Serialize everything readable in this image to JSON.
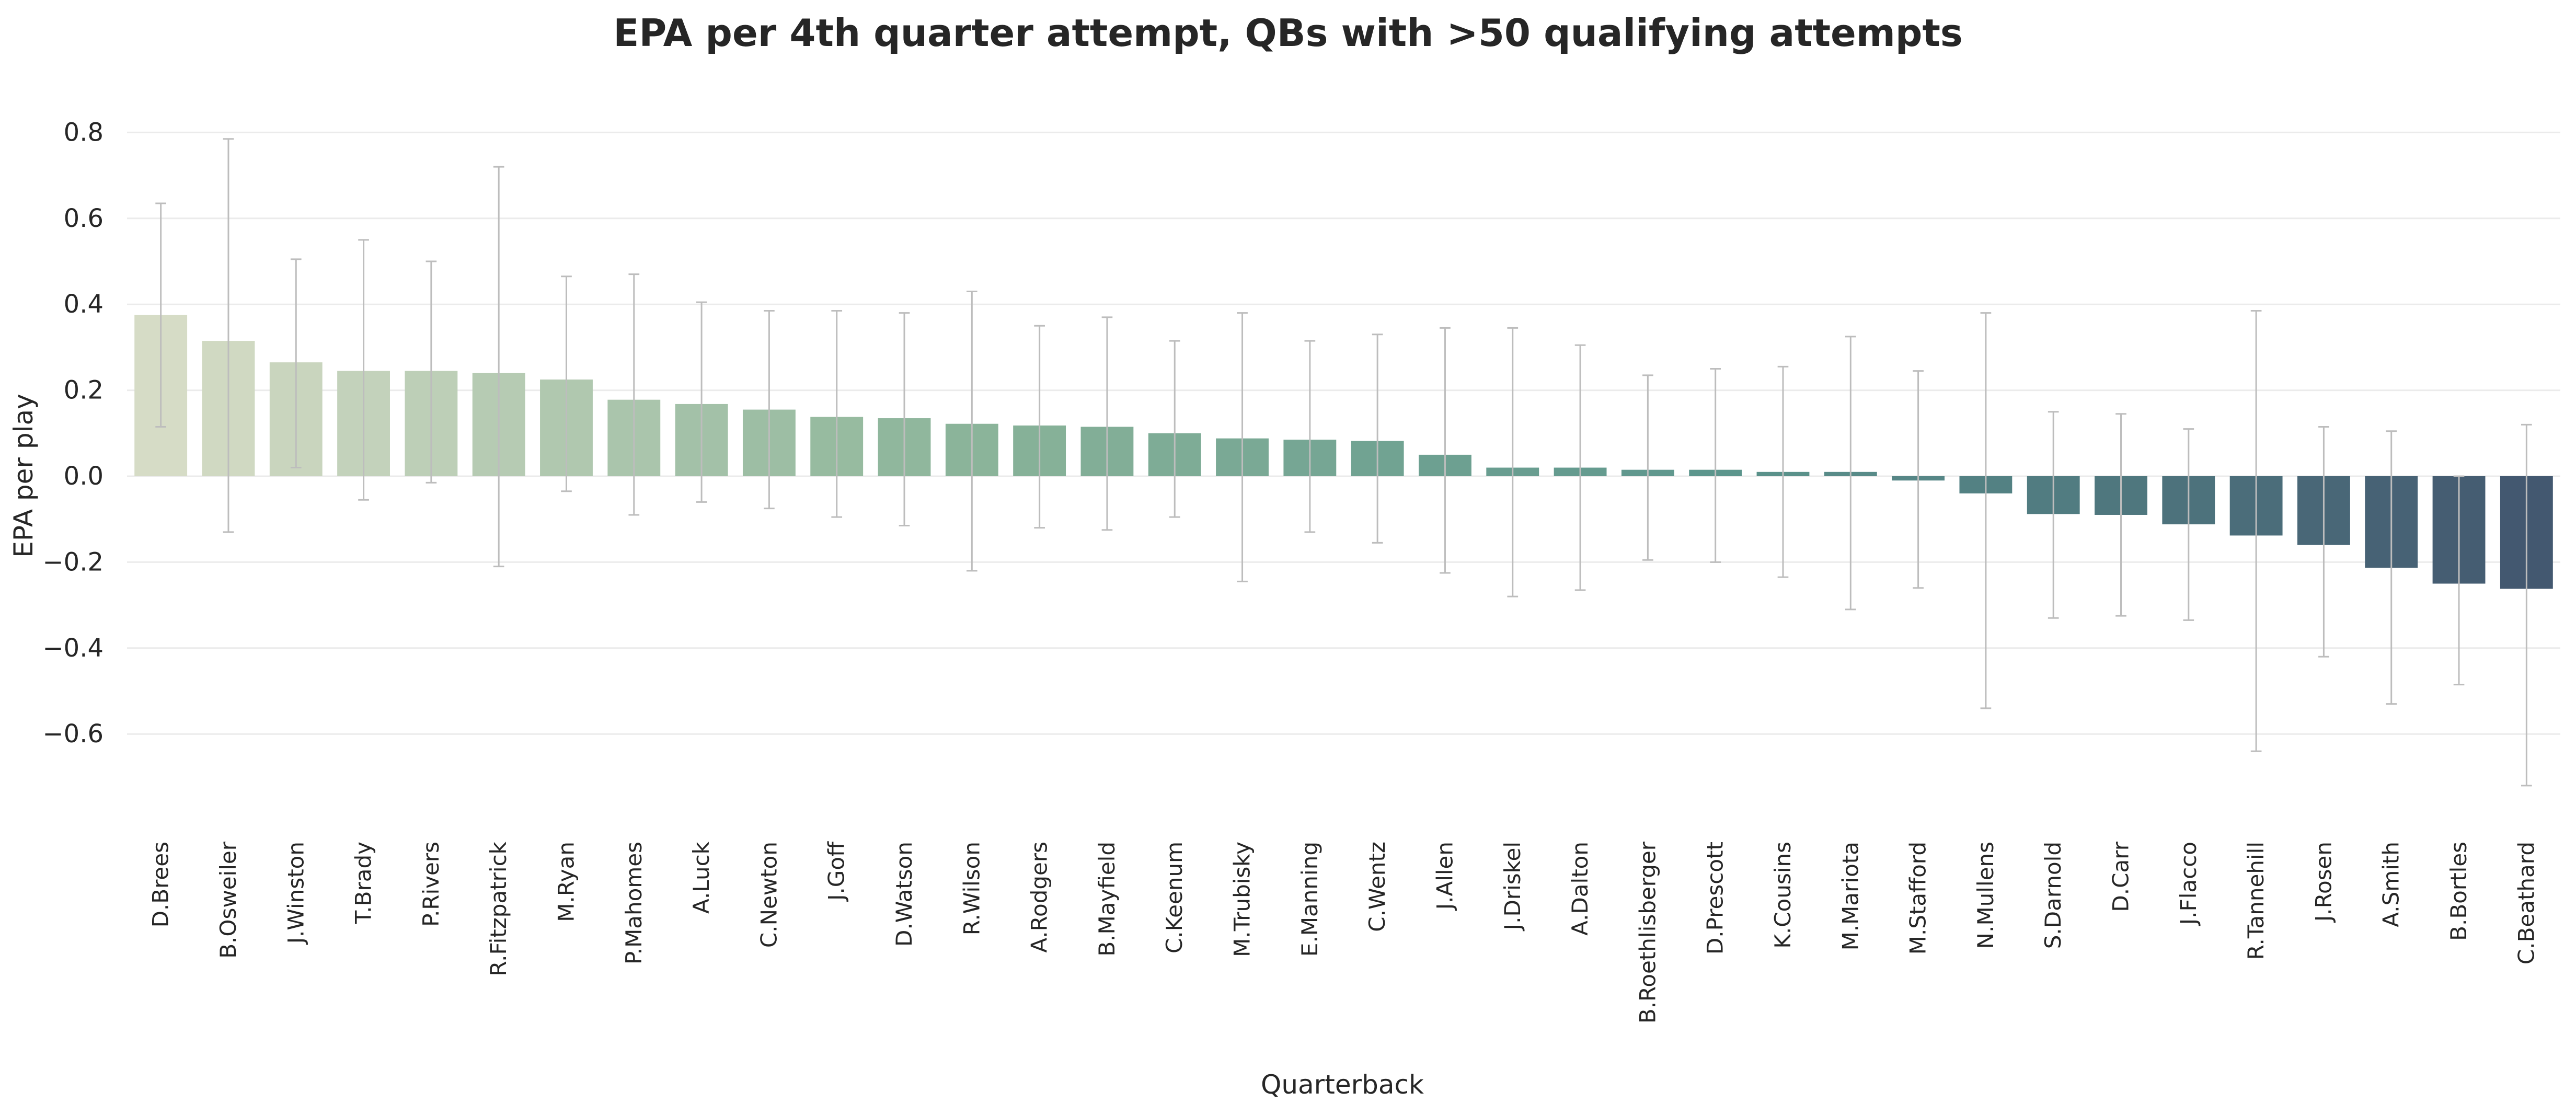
{
  "chart_data": {
    "type": "bar",
    "title": "EPA per 4th quarter attempt, QBs with >50 qualifying attempts",
    "xlabel": "Quarterback",
    "ylabel": "EPA per play",
    "ylim": [
      -0.8,
      0.85
    ],
    "yticks": [
      "0.8",
      "0.6",
      "0.4",
      "0.2",
      "0.0",
      "−0.2",
      "−0.4",
      "−0.6"
    ],
    "ytick_values": [
      0.8,
      0.6,
      0.4,
      0.2,
      0.0,
      -0.2,
      -0.4,
      -0.6
    ],
    "grid": true,
    "categories": [
      "D.Brees",
      "B.Osweiler",
      "J.Winston",
      "T.Brady",
      "P.Rivers",
      "R.Fitzpatrick",
      "M.Ryan",
      "P.Mahomes",
      "A.Luck",
      "C.Newton",
      "J.Goff",
      "D.Watson",
      "R.Wilson",
      "A.Rodgers",
      "B.Mayfield",
      "C.Keenum",
      "M.Trubisky",
      "E.Manning",
      "C.Wentz",
      "J.Allen",
      "J.Driskel",
      "A.Dalton",
      "B.Roethlisberger",
      "D.Prescott",
      "K.Cousins",
      "M.Mariota",
      "M.Stafford",
      "N.Mullens",
      "S.Darnold",
      "D.Carr",
      "J.Flacco",
      "R.Tannehill",
      "J.Rosen",
      "A.Smith",
      "B.Bortles",
      "C.Beathard"
    ],
    "values": [
      0.375,
      0.315,
      0.265,
      0.245,
      0.245,
      0.24,
      0.225,
      0.178,
      0.168,
      0.155,
      0.138,
      0.135,
      0.122,
      0.118,
      0.115,
      0.1,
      0.088,
      0.085,
      0.082,
      0.05,
      0.02,
      0.02,
      0.015,
      0.015,
      0.01,
      0.01,
      -0.01,
      -0.04,
      -0.088,
      -0.09,
      -0.112,
      -0.138,
      -0.16,
      -0.213,
      -0.25,
      -0.262
    ],
    "error_low": [
      0.115,
      -0.13,
      0.02,
      -0.055,
      -0.015,
      -0.21,
      -0.035,
      -0.09,
      -0.06,
      -0.075,
      -0.095,
      -0.115,
      -0.22,
      -0.12,
      -0.125,
      -0.095,
      -0.245,
      -0.13,
      -0.155,
      -0.225,
      -0.28,
      -0.265,
      -0.195,
      -0.2,
      -0.235,
      -0.31,
      -0.26,
      -0.54,
      -0.33,
      -0.325,
      -0.335,
      -0.64,
      -0.42,
      -0.53,
      -0.485,
      -0.72
    ],
    "error_high": [
      0.635,
      0.785,
      0.505,
      0.55,
      0.5,
      0.72,
      0.465,
      0.47,
      0.405,
      0.385,
      0.385,
      0.38,
      0.43,
      0.35,
      0.37,
      0.315,
      0.38,
      0.315,
      0.33,
      0.345,
      0.345,
      0.305,
      0.235,
      0.25,
      0.255,
      0.325,
      0.245,
      0.38,
      0.15,
      0.145,
      0.11,
      0.385,
      0.115,
      0.105,
      0.0,
      0.12
    ],
    "colors": {
      "start": "#d6dcc6",
      "mid": "#8cb59a",
      "mid2": "#5b948c",
      "end": "#435870",
      "error": "#bdbdbd",
      "grid": "#ebebeb"
    }
  }
}
